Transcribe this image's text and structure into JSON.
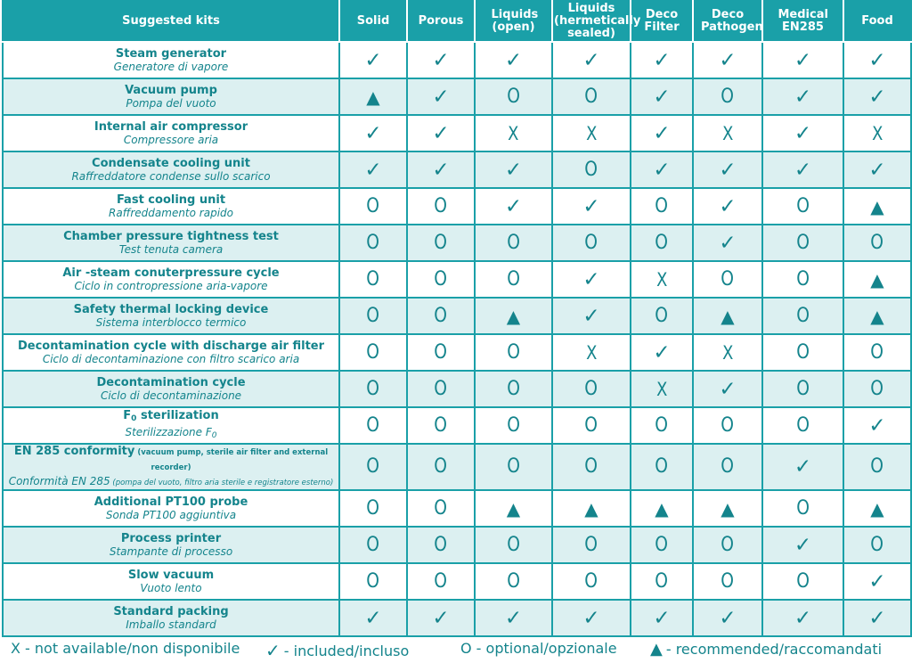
{
  "header": {
    "kits_label": "Suggested kits",
    "columns": [
      "Solid",
      "Porous",
      "Liquids (open)",
      "Liquids (hermetically sealed)",
      "Deco Filter",
      "Deco Pathogen",
      "Medical EN285",
      "Food"
    ]
  },
  "marks": {
    "check": "✓",
    "optional": "O",
    "not_available": "X",
    "recommended": "▲"
  },
  "rows": [
    {
      "en": "Steam generator",
      "it": "Generatore di vapore",
      "values": [
        "check",
        "check",
        "check",
        "check",
        "check",
        "check",
        "check",
        "check"
      ]
    },
    {
      "en": "Vacuum pump",
      "it": "Pompa del vuoto",
      "values": [
        "recommended",
        "check",
        "optional",
        "optional",
        "check",
        "optional",
        "check",
        "check"
      ]
    },
    {
      "en": "Internal air compressor",
      "it": "Compressore aria",
      "values": [
        "check",
        "check",
        "not_available",
        "not_available",
        "check",
        "not_available",
        "check",
        "not_available"
      ]
    },
    {
      "en": "Condensate cooling unit",
      "it": "Raffreddatore condense sullo scarico",
      "values": [
        "check",
        "check",
        "check",
        "optional",
        "check",
        "check",
        "check",
        "check"
      ]
    },
    {
      "en": "Fast cooling unit",
      "it": "Raffreddamento rapido",
      "values": [
        "optional",
        "optional",
        "check",
        "check",
        "optional",
        "check",
        "optional",
        "recommended"
      ]
    },
    {
      "en": "Chamber pressure tightness test",
      "it": "Test tenuta camera",
      "values": [
        "optional",
        "optional",
        "optional",
        "optional",
        "optional",
        "check",
        "optional",
        "optional"
      ]
    },
    {
      "en": "Air -steam conuterpressure cycle",
      "it": "Ciclo in contropressione aria-vapore",
      "values": [
        "optional",
        "optional",
        "optional",
        "check",
        "not_available",
        "optional",
        "optional",
        "recommended"
      ]
    },
    {
      "en": "Safety thermal locking device",
      "it": "Sistema interblocco termico",
      "values": [
        "optional",
        "optional",
        "recommended",
        "check",
        "optional",
        "recommended",
        "optional",
        "recommended"
      ]
    },
    {
      "en": "Decontamination cycle with discharge air filter",
      "it": "Ciclo di decontaminazione con filtro scarico aria",
      "values": [
        "optional",
        "optional",
        "optional",
        "not_available",
        "check",
        "not_available",
        "optional",
        "optional"
      ]
    },
    {
      "en": "Decontamination cycle",
      "it": "Ciclo di decontaminazione",
      "values": [
        "optional",
        "optional",
        "optional",
        "optional",
        "not_available",
        "check",
        "optional",
        "optional"
      ]
    },
    {
      "en": "F",
      "en_sub": "0",
      "en_after": " sterilization",
      "it": "Sterilizzazione F",
      "it_sub": "0",
      "values": [
        "optional",
        "optional",
        "optional",
        "optional",
        "optional",
        "optional",
        "optional",
        "check"
      ]
    },
    {
      "en": "EN 285 conformity",
      "en_note": " (vacuum pump, sterile air filter and external recorder)",
      "it": "Conformità EN 285",
      "it_note": " (pompa del vuoto, filtro aria sterile e registratore esterno)",
      "values": [
        "optional",
        "optional",
        "optional",
        "optional",
        "optional",
        "optional",
        "check",
        "optional"
      ]
    },
    {
      "en": "Additional PT100 probe",
      "it": "Sonda PT100 aggiuntiva",
      "values": [
        "optional",
        "optional",
        "recommended",
        "recommended",
        "recommended",
        "recommended",
        "optional",
        "recommended"
      ]
    },
    {
      "en": "Process printer",
      "it": "Stampante di processo",
      "values": [
        "optional",
        "optional",
        "optional",
        "optional",
        "optional",
        "optional",
        "check",
        "optional"
      ]
    },
    {
      "en": "Slow vacuum",
      "it": "Vuoto lento",
      "values": [
        "optional",
        "optional",
        "optional",
        "optional",
        "optional",
        "optional",
        "optional",
        "check"
      ]
    },
    {
      "en": "Standard packing",
      "it": "Imballo standard",
      "values": [
        "check",
        "check",
        "check",
        "check",
        "check",
        "check",
        "check",
        "check"
      ]
    }
  ],
  "legend": {
    "not_available": "X - not available/non disponibile",
    "included_mark": "✓",
    "included": "- included/incluso",
    "optional": "O - optional/opzionale",
    "recommended_mark": "▲",
    "recommended": "- recommended/raccomandati"
  },
  "colors": {
    "teal": "#1aa0a8",
    "teal_text": "#14848c",
    "stripe": "#dcf0f1"
  }
}
